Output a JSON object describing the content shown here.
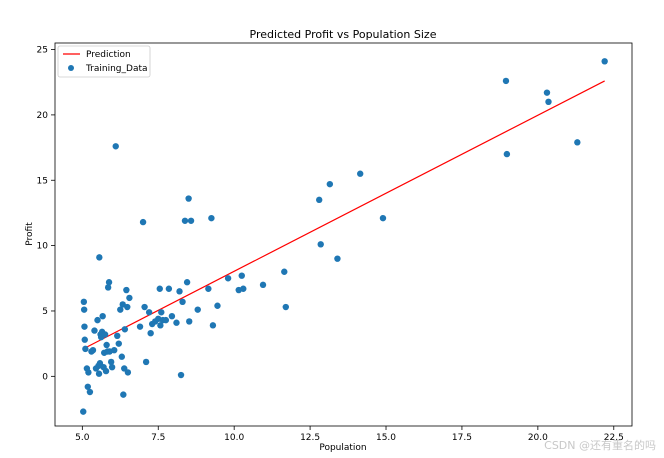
{
  "chart_data": {
    "type": "scatter",
    "title": "Predicted Profit vs Population Size",
    "xlabel": "Population",
    "ylabel": "Profit",
    "xlim": [
      4.1,
      23.1
    ],
    "ylim": [
      -3.8,
      25.5
    ],
    "xticks": [
      5.0,
      7.5,
      10.0,
      12.5,
      15.0,
      17.5,
      20.0,
      22.5
    ],
    "xtick_labels": [
      "5.0",
      "7.5",
      "10.0",
      "12.5",
      "15.0",
      "17.5",
      "20.0",
      "22.5"
    ],
    "yticks": [
      0,
      5,
      10,
      15,
      20,
      25
    ],
    "ytick_labels": [
      "0",
      "5",
      "10",
      "15",
      "20",
      "25"
    ],
    "grid": false,
    "legend_position": "top-left",
    "series": [
      {
        "name": "Prediction",
        "kind": "line",
        "color": "#ff0000",
        "x": [
          5.03,
          22.2
        ],
        "y": [
          2.1,
          22.6
        ]
      },
      {
        "name": "Training_Data",
        "kind": "scatter",
        "color": "#1f77b4",
        "points": [
          [
            5.03,
            -2.7
          ],
          [
            5.05,
            5.7
          ],
          [
            5.06,
            5.1
          ],
          [
            5.07,
            3.8
          ],
          [
            5.08,
            2.8
          ],
          [
            5.1,
            2.1
          ],
          [
            5.15,
            0.6
          ],
          [
            5.18,
            -0.8
          ],
          [
            5.2,
            0.3
          ],
          [
            5.25,
            -1.2
          ],
          [
            5.3,
            1.9
          ],
          [
            5.35,
            2.0
          ],
          [
            5.4,
            3.5
          ],
          [
            5.45,
            0.6
          ],
          [
            5.5,
            4.3
          ],
          [
            5.53,
            0.8
          ],
          [
            5.55,
            0.2
          ],
          [
            5.56,
            9.1
          ],
          [
            5.58,
            1.0
          ],
          [
            5.6,
            3.2
          ],
          [
            5.62,
            3.0
          ],
          [
            5.65,
            3.4
          ],
          [
            5.67,
            4.6
          ],
          [
            5.7,
            0.7
          ],
          [
            5.72,
            1.8
          ],
          [
            5.75,
            3.2
          ],
          [
            5.78,
            0.4
          ],
          [
            5.8,
            2.4
          ],
          [
            5.83,
            1.9
          ],
          [
            5.85,
            6.8
          ],
          [
            5.88,
            7.2
          ],
          [
            5.9,
            1.9
          ],
          [
            5.95,
            1.1
          ],
          [
            5.98,
            0.7
          ],
          [
            6.05,
            2.0
          ],
          [
            6.1,
            17.6
          ],
          [
            6.15,
            3.1
          ],
          [
            6.2,
            2.5
          ],
          [
            6.25,
            5.1
          ],
          [
            6.3,
            1.5
          ],
          [
            6.33,
            5.5
          ],
          [
            6.35,
            -1.4
          ],
          [
            6.38,
            0.6
          ],
          [
            6.4,
            3.6
          ],
          [
            6.45,
            6.6
          ],
          [
            6.48,
            5.3
          ],
          [
            6.5,
            0.3
          ],
          [
            6.55,
            6.0
          ],
          [
            6.9,
            3.8
          ],
          [
            7.0,
            11.8
          ],
          [
            7.05,
            5.3
          ],
          [
            7.1,
            1.1
          ],
          [
            7.2,
            4.9
          ],
          [
            7.25,
            3.3
          ],
          [
            7.3,
            4.0
          ],
          [
            7.4,
            4.2
          ],
          [
            7.5,
            4.4
          ],
          [
            7.55,
            6.7
          ],
          [
            7.57,
            3.9
          ],
          [
            7.6,
            4.9
          ],
          [
            7.65,
            4.3
          ],
          [
            7.75,
            4.3
          ],
          [
            7.85,
            6.7
          ],
          [
            7.95,
            4.6
          ],
          [
            8.1,
            4.1
          ],
          [
            8.2,
            6.5
          ],
          [
            8.25,
            0.1
          ],
          [
            8.3,
            5.7
          ],
          [
            8.38,
            11.9
          ],
          [
            8.45,
            7.2
          ],
          [
            8.5,
            13.6
          ],
          [
            8.52,
            4.2
          ],
          [
            8.58,
            11.9
          ],
          [
            8.8,
            5.1
          ],
          [
            9.15,
            6.7
          ],
          [
            9.25,
            12.1
          ],
          [
            9.3,
            3.9
          ],
          [
            9.45,
            5.4
          ],
          [
            9.8,
            7.5
          ],
          [
            10.15,
            6.6
          ],
          [
            10.25,
            7.7
          ],
          [
            10.3,
            6.7
          ],
          [
            10.95,
            7.0
          ],
          [
            11.65,
            8.0
          ],
          [
            11.7,
            5.3
          ],
          [
            12.8,
            13.5
          ],
          [
            12.85,
            10.1
          ],
          [
            13.15,
            14.7
          ],
          [
            13.4,
            9.0
          ],
          [
            14.15,
            15.5
          ],
          [
            14.9,
            12.1
          ],
          [
            18.95,
            22.6
          ],
          [
            18.98,
            17.0
          ],
          [
            20.3,
            21.7
          ],
          [
            20.35,
            21.0
          ],
          [
            21.3,
            17.9
          ],
          [
            22.2,
            24.1
          ]
        ]
      }
    ]
  },
  "watermark": "CSDN @还有重名的吗"
}
